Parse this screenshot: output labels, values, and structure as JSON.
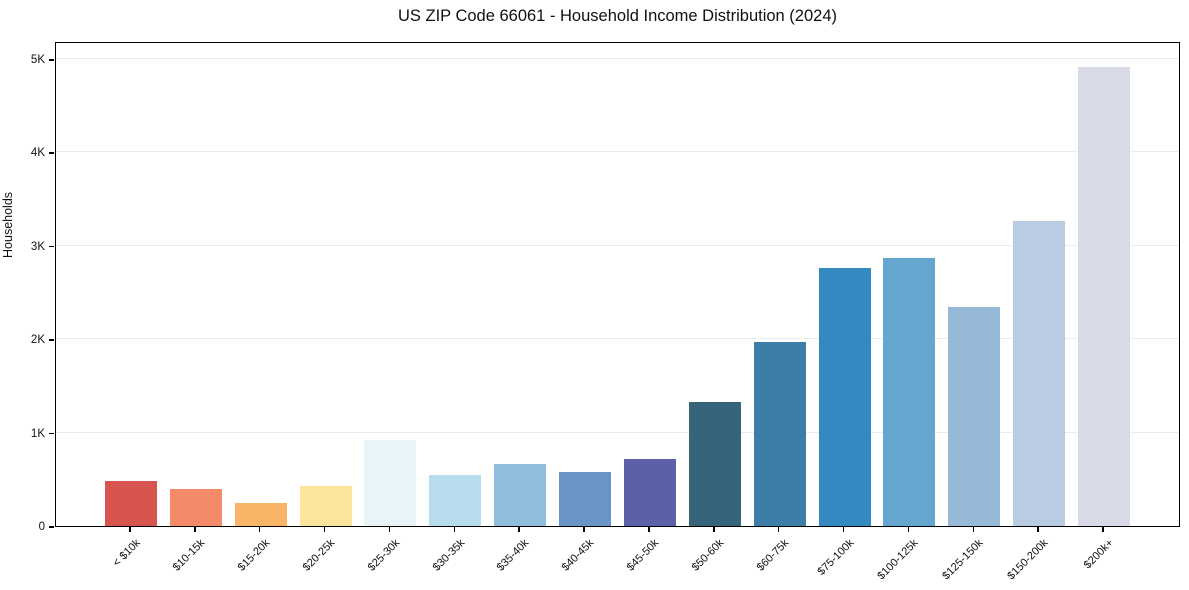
{
  "title": "US ZIP Code 66061 - Household Income Distribution (2024)",
  "chart_data": {
    "type": "bar",
    "title": "US ZIP Code 66061 - Household Income Distribution (2024)",
    "xlabel": "",
    "ylabel": "Households",
    "categories": [
      "< $10k",
      "$10-15k",
      "$15-20k",
      "$20-25k",
      "$25-30k",
      "$30-35k",
      "$35-40k",
      "$40-45k",
      "$45-50k",
      "$50-60k",
      "$60-75k",
      "$75-100k",
      "$100-125k",
      "$125-150k",
      "$150-200k",
      "$200k+"
    ],
    "values": [
      485,
      400,
      248,
      430,
      920,
      548,
      665,
      573,
      713,
      1322,
      1968,
      2762,
      2870,
      2340,
      3265,
      4910
    ],
    "bar_colors": [
      "#d8544f",
      "#f58a68",
      "#f9b468",
      "#fde59d",
      "#e9f4f8",
      "#b7dcec",
      "#90bcdd",
      "#6994c6",
      "#5b60a8",
      "#35647b",
      "#3c7ea7",
      "#348ac0",
      "#64a6cd",
      "#95b9d7",
      "#b9cce2",
      "#d8dae7"
    ],
    "ylim": [
      0,
      5190
    ],
    "yticks": {
      "values": [
        0,
        1000,
        2000,
        3000,
        4000,
        5000
      ],
      "labels": [
        "0",
        "1K",
        "2K",
        "3K",
        "4K",
        "5K"
      ]
    },
    "grid": "horizontal-only",
    "legend": "none"
  }
}
